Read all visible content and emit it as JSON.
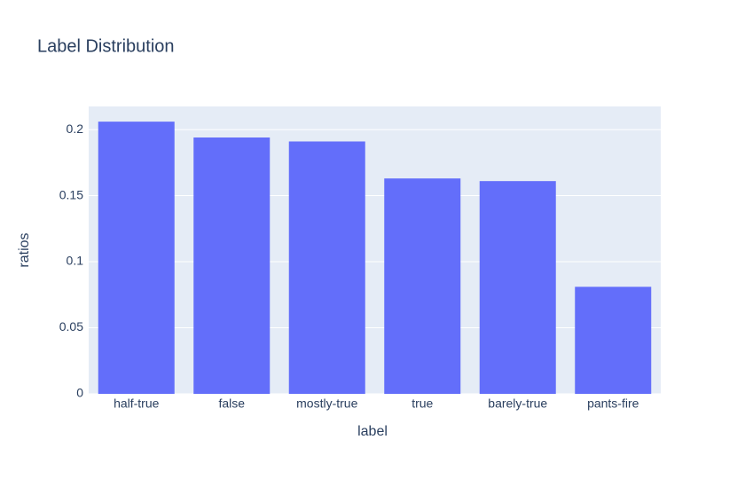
{
  "chart_data": {
    "type": "bar",
    "title": "Label Distribution",
    "x_label": "label",
    "y_label": "ratios",
    "categories": [
      "half-true",
      "false",
      "mostly-true",
      "true",
      "barely-true",
      "pants-fire"
    ],
    "values": [
      0.206,
      0.194,
      0.191,
      0.163,
      0.161,
      0.081
    ],
    "color": "#636efa",
    "ylim": [
      0,
      0.2175
    ],
    "yticks": [
      0,
      0.05,
      0.1,
      0.15,
      0.2
    ],
    "grid": true
  }
}
